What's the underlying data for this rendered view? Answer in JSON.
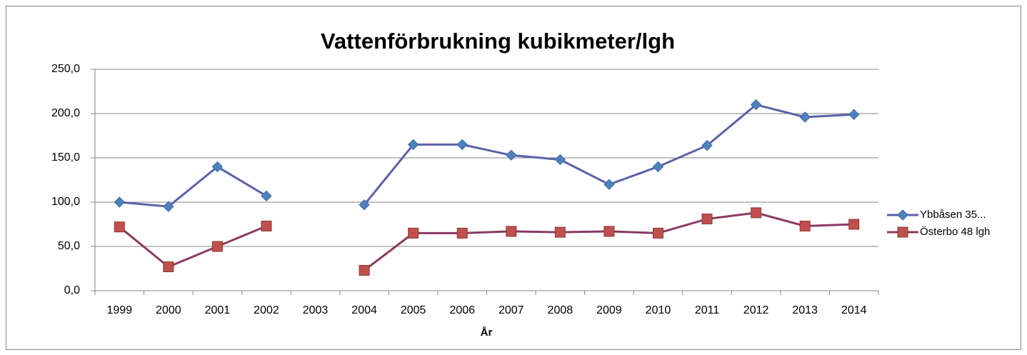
{
  "chart_data": {
    "type": "line",
    "title": "Vattenförbrukning kubikmeter/lgh",
    "x_label": "År",
    "categories": [
      "1999",
      "2000",
      "2001",
      "2002",
      "2003",
      "2004",
      "2005",
      "2006",
      "2007",
      "2008",
      "2009",
      "2010",
      "2011",
      "2012",
      "2013",
      "2014"
    ],
    "series": [
      {
        "name": "Ybbåsen 35...",
        "color": "#4F81BD",
        "line_color": "#5B62A8",
        "marker": "diamond",
        "values": [
          100,
          95,
          140,
          107,
          null,
          97,
          165,
          165,
          153,
          148,
          120,
          140,
          164,
          210,
          196,
          199
        ]
      },
      {
        "name": "Österbo 48 lgh",
        "color": "#C0504D",
        "line_color": "#8B3A62",
        "marker": "square",
        "values": [
          72,
          27,
          50,
          73,
          null,
          23,
          65,
          65,
          67,
          66,
          67,
          65,
          81,
          88,
          73,
          75
        ]
      }
    ],
    "ylim": [
      0,
      250
    ],
    "yticks": [
      {
        "value": 0,
        "label": "0,0"
      },
      {
        "value": 50,
        "label": "50,0"
      },
      {
        "value": 100,
        "label": "100,0"
      },
      {
        "value": 150,
        "label": "150,0"
      },
      {
        "value": 200,
        "label": "200,0"
      },
      {
        "value": 250,
        "label": "250,0"
      }
    ],
    "grid": true,
    "legend": "right"
  }
}
